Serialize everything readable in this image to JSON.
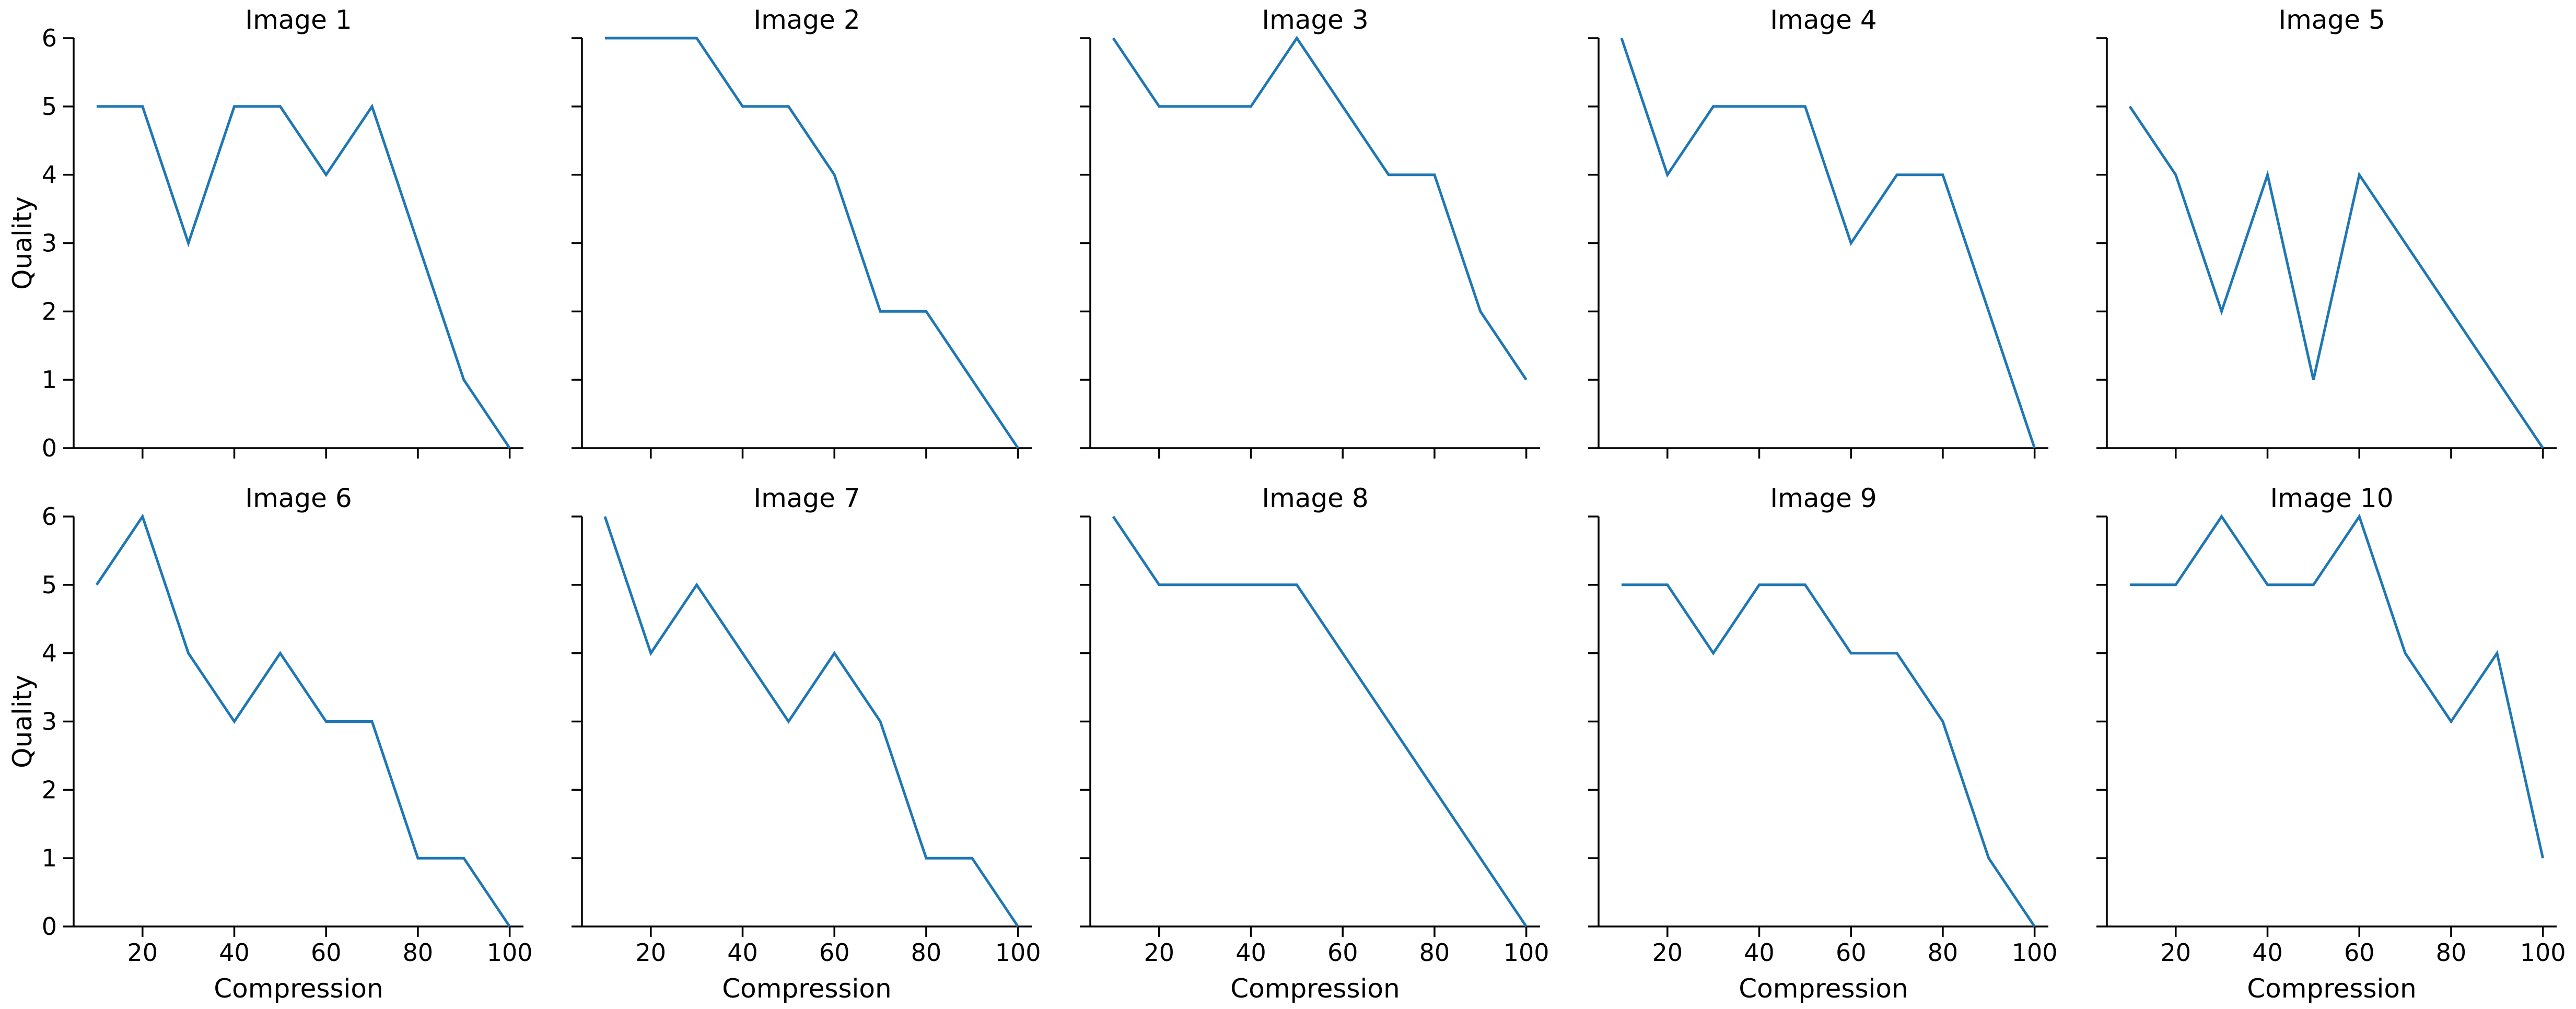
{
  "chart_data": {
    "type": "line",
    "layout": {
      "rows": 2,
      "cols": 5,
      "sharex": true,
      "sharey": true
    },
    "xlabel": "Compression",
    "ylabel": "Quality",
    "xlim": [
      5,
      103
    ],
    "ylim": [
      0,
      6
    ],
    "xticks": [
      20,
      40,
      60,
      80,
      100
    ],
    "yticks": [
      0,
      1,
      2,
      3,
      4,
      5,
      6
    ],
    "grid": false,
    "line_color": "#1f77b4",
    "x": [
      10,
      20,
      30,
      40,
      50,
      60,
      70,
      80,
      90,
      100
    ],
    "panels": [
      {
        "title": "Image 1",
        "values": [
          5,
          5,
          3,
          5,
          5,
          4,
          5,
          3,
          1,
          0
        ]
      },
      {
        "title": "Image 2",
        "values": [
          6,
          6,
          6,
          5,
          5,
          4,
          2,
          2,
          1,
          0
        ]
      },
      {
        "title": "Image 3",
        "values": [
          6,
          5,
          5,
          5,
          6,
          5,
          4,
          4,
          2,
          1
        ]
      },
      {
        "title": "Image 4",
        "values": [
          6,
          4,
          5,
          5,
          5,
          3,
          4,
          4,
          2,
          0
        ]
      },
      {
        "title": "Image 5",
        "values": [
          5,
          4,
          2,
          4,
          1,
          4,
          3,
          2,
          1,
          0
        ]
      },
      {
        "title": "Image 6",
        "values": [
          5,
          6,
          4,
          3,
          4,
          3,
          3,
          1,
          1,
          0
        ]
      },
      {
        "title": "Image 7",
        "values": [
          6,
          4,
          5,
          4,
          3,
          4,
          3,
          1,
          1,
          0
        ]
      },
      {
        "title": "Image 8",
        "values": [
          6,
          5,
          5,
          5,
          5,
          4,
          3,
          2,
          1,
          0
        ]
      },
      {
        "title": "Image 9",
        "values": [
          5,
          5,
          4,
          5,
          5,
          4,
          4,
          3,
          1,
          0
        ]
      },
      {
        "title": "Image 10",
        "values": [
          5,
          5,
          6,
          5,
          5,
          6,
          4,
          3,
          4,
          1
        ]
      }
    ]
  }
}
